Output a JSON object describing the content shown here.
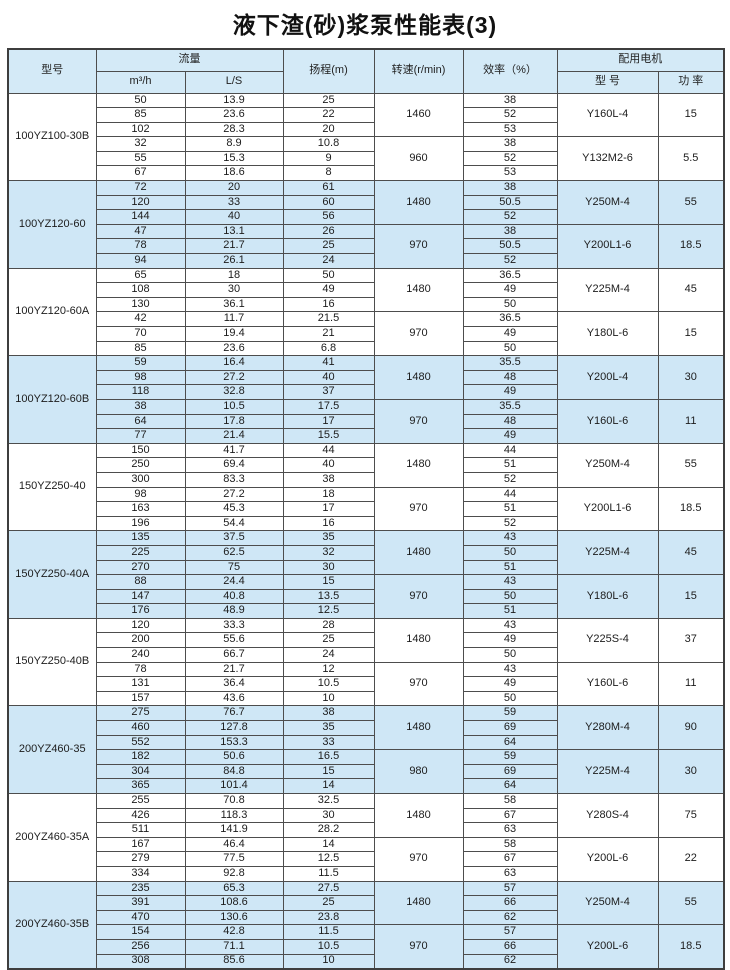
{
  "title": "液下渣(砂)浆泵性能表(3)",
  "colors": {
    "header_bg": "#d4eaf7",
    "shaded_row_bg": "#cfe7f6",
    "border": "#4d4d4d",
    "text": "#1c1c1c"
  },
  "table": {
    "headers": {
      "model": "型号",
      "flow": "流量",
      "flow_m3h": "m³/h",
      "flow_ls": "L/S",
      "head": "扬程(m)",
      "speed": "转速(r/min)",
      "efficiency": "效率（%）",
      "motor": "配用电机",
      "motor_model": "型 号",
      "motor_power": "功 率"
    },
    "groups": [
      {
        "model": "100YZ100-30B",
        "shaded": false,
        "subgroups": [
          {
            "speed": "1460",
            "motor_model": "Y160L-4",
            "motor_power": "15",
            "rows": [
              [
                "50",
                "13.9",
                "25",
                "38"
              ],
              [
                "85",
                "23.6",
                "22",
                "52"
              ],
              [
                "102",
                "28.3",
                "20",
                "53"
              ]
            ]
          },
          {
            "speed": "960",
            "motor_model": "Y132M2-6",
            "motor_power": "5.5",
            "rows": [
              [
                "32",
                "8.9",
                "10.8",
                "38"
              ],
              [
                "55",
                "15.3",
                "9",
                "52"
              ],
              [
                "67",
                "18.6",
                "8",
                "53"
              ]
            ]
          }
        ]
      },
      {
        "model": "100YZ120-60",
        "shaded": true,
        "subgroups": [
          {
            "speed": "1480",
            "motor_model": "Y250M-4",
            "motor_power": "55",
            "rows": [
              [
                "72",
                "20",
                "61",
                "38"
              ],
              [
                "120",
                "33",
                "60",
                "50.5"
              ],
              [
                "144",
                "40",
                "56",
                "52"
              ]
            ]
          },
          {
            "speed": "970",
            "motor_model": "Y200L1-6",
            "motor_power": "18.5",
            "rows": [
              [
                "47",
                "13.1",
                "26",
                "38"
              ],
              [
                "78",
                "21.7",
                "25",
                "50.5"
              ],
              [
                "94",
                "26.1",
                "24",
                "52"
              ]
            ]
          }
        ]
      },
      {
        "model": "100YZ120-60A",
        "shaded": false,
        "subgroups": [
          {
            "speed": "1480",
            "motor_model": "Y225M-4",
            "motor_power": "45",
            "rows": [
              [
                "65",
                "18",
                "50",
                "36.5"
              ],
              [
                "108",
                "30",
                "49",
                "49"
              ],
              [
                "130",
                "36.1",
                "16",
                "50"
              ]
            ]
          },
          {
            "speed": "970",
            "motor_model": "Y180L-6",
            "motor_power": "15",
            "rows": [
              [
                "42",
                "11.7",
                "21.5",
                "36.5"
              ],
              [
                "70",
                "19.4",
                "21",
                "49"
              ],
              [
                "85",
                "23.6",
                "6.8",
                "50"
              ]
            ]
          }
        ]
      },
      {
        "model": "100YZ120-60B",
        "shaded": true,
        "subgroups": [
          {
            "speed": "1480",
            "motor_model": "Y200L-4",
            "motor_power": "30",
            "rows": [
              [
                "59",
                "16.4",
                "41",
                "35.5"
              ],
              [
                "98",
                "27.2",
                "40",
                "48"
              ],
              [
                "118",
                "32.8",
                "37",
                "49"
              ]
            ]
          },
          {
            "speed": "970",
            "motor_model": "Y160L-6",
            "motor_power": "11",
            "rows": [
              [
                "38",
                "10.5",
                "17.5",
                "35.5"
              ],
              [
                "64",
                "17.8",
                "17",
                "48"
              ],
              [
                "77",
                "21.4",
                "15.5",
                "49"
              ]
            ]
          }
        ]
      },
      {
        "model": "150YZ250-40",
        "shaded": false,
        "subgroups": [
          {
            "speed": "1480",
            "motor_model": "Y250M-4",
            "motor_power": "55",
            "rows": [
              [
                "150",
                "41.7",
                "44",
                "44"
              ],
              [
                "250",
                "69.4",
                "40",
                "51"
              ],
              [
                "300",
                "83.3",
                "38",
                "52"
              ]
            ]
          },
          {
            "speed": "970",
            "motor_model": "Y200L1-6",
            "motor_power": "18.5",
            "rows": [
              [
                "98",
                "27.2",
                "18",
                "44"
              ],
              [
                "163",
                "45.3",
                "17",
                "51"
              ],
              [
                "196",
                "54.4",
                "16",
                "52"
              ]
            ]
          }
        ]
      },
      {
        "model": "150YZ250-40A",
        "shaded": true,
        "subgroups": [
          {
            "speed": "1480",
            "motor_model": "Y225M-4",
            "motor_power": "45",
            "rows": [
              [
                "135",
                "37.5",
                "35",
                "43"
              ],
              [
                "225",
                "62.5",
                "32",
                "50"
              ],
              [
                "270",
                "75",
                "30",
                "51"
              ]
            ]
          },
          {
            "speed": "970",
            "motor_model": "Y180L-6",
            "motor_power": "15",
            "rows": [
              [
                "88",
                "24.4",
                "15",
                "43"
              ],
              [
                "147",
                "40.8",
                "13.5",
                "50"
              ],
              [
                "176",
                "48.9",
                "12.5",
                "51"
              ]
            ]
          }
        ]
      },
      {
        "model": "150YZ250-40B",
        "shaded": false,
        "subgroups": [
          {
            "speed": "1480",
            "motor_model": "Y225S-4",
            "motor_power": "37",
            "rows": [
              [
                "120",
                "33.3",
                "28",
                "43"
              ],
              [
                "200",
                "55.6",
                "25",
                "49"
              ],
              [
                "240",
                "66.7",
                "24",
                "50"
              ]
            ]
          },
          {
            "speed": "970",
            "motor_model": "Y160L-6",
            "motor_power": "11",
            "rows": [
              [
                "78",
                "21.7",
                "12",
                "43"
              ],
              [
                "131",
                "36.4",
                "10.5",
                "49"
              ],
              [
                "157",
                "43.6",
                "10",
                "50"
              ]
            ]
          }
        ]
      },
      {
        "model": "200YZ460-35",
        "shaded": true,
        "subgroups": [
          {
            "speed": "1480",
            "motor_model": "Y280M-4",
            "motor_power": "90",
            "rows": [
              [
                "275",
                "76.7",
                "38",
                "59"
              ],
              [
                "460",
                "127.8",
                "35",
                "69"
              ],
              [
                "552",
                "153.3",
                "33",
                "64"
              ]
            ]
          },
          {
            "speed": "980",
            "motor_model": "Y225M-4",
            "motor_power": "30",
            "rows": [
              [
                "182",
                "50.6",
                "16.5",
                "59"
              ],
              [
                "304",
                "84.8",
                "15",
                "69"
              ],
              [
                "365",
                "101.4",
                "14",
                "64"
              ]
            ]
          }
        ]
      },
      {
        "model": "200YZ460-35A",
        "shaded": false,
        "subgroups": [
          {
            "speed": "1480",
            "motor_model": "Y280S-4",
            "motor_power": "75",
            "rows": [
              [
                "255",
                "70.8",
                "32.5",
                "58"
              ],
              [
                "426",
                "118.3",
                "30",
                "67"
              ],
              [
                "511",
                "141.9",
                "28.2",
                "63"
              ]
            ]
          },
          {
            "speed": "970",
            "motor_model": "Y200L-6",
            "motor_power": "22",
            "rows": [
              [
                "167",
                "46.4",
                "14",
                "58"
              ],
              [
                "279",
                "77.5",
                "12.5",
                "67"
              ],
              [
                "334",
                "92.8",
                "11.5",
                "63"
              ]
            ]
          }
        ]
      },
      {
        "model": "200YZ460-35B",
        "shaded": true,
        "subgroups": [
          {
            "speed": "1480",
            "motor_model": "Y250M-4",
            "motor_power": "55",
            "rows": [
              [
                "235",
                "65.3",
                "27.5",
                "57"
              ],
              [
                "391",
                "108.6",
                "25",
                "66"
              ],
              [
                "470",
                "130.6",
                "23.8",
                "62"
              ]
            ]
          },
          {
            "speed": "970",
            "motor_model": "Y200L-6",
            "motor_power": "18.5",
            "rows": [
              [
                "154",
                "42.8",
                "11.5",
                "57"
              ],
              [
                "256",
                "71.1",
                "10.5",
                "66"
              ],
              [
                "308",
                "85.6",
                "10",
                "62"
              ]
            ]
          }
        ]
      }
    ]
  }
}
